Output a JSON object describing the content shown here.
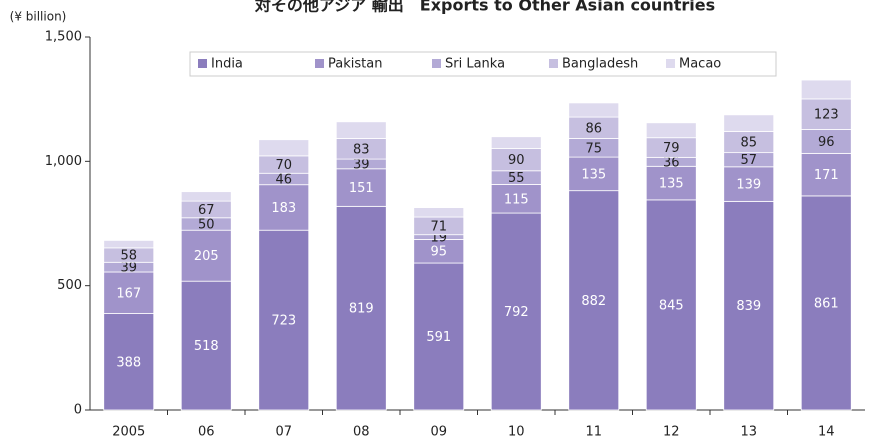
{
  "chart_data": {
    "type": "stacked_bar",
    "title": "対その他アジア 輸出　Exports to Other Asian countries",
    "y_axis_label": "(¥ billion)",
    "categories": [
      "2005",
      "06",
      "07",
      "08",
      "09",
      "10",
      "11",
      "12",
      "13",
      "14"
    ],
    "series": [
      {
        "name": "India",
        "color": "#8b7dbd",
        "label_color": "#ffffff",
        "show_labels": true,
        "values": [
          388,
          518,
          723,
          819,
          591,
          792,
          882,
          845,
          839,
          861
        ]
      },
      {
        "name": "Pakistan",
        "color": "#a093ca",
        "label_color": "#ffffff",
        "show_labels": true,
        "values": [
          167,
          205,
          183,
          151,
          95,
          115,
          135,
          135,
          139,
          171
        ]
      },
      {
        "name": "Sri Lanka",
        "color": "#b3aad6",
        "label_color": "#222222",
        "show_labels": true,
        "values": [
          39,
          50,
          46,
          39,
          19,
          55,
          75,
          36,
          57,
          96
        ]
      },
      {
        "name": "Bangladesh",
        "color": "#c6bfe0",
        "label_color": "#222222",
        "show_labels": true,
        "values": [
          58,
          67,
          70,
          83,
          71,
          90,
          86,
          79,
          85,
          123
        ]
      },
      {
        "name": "Macao",
        "color": "#dedaee",
        "label_color": "#222222",
        "show_labels": false,
        "values": [
          30,
          38,
          65,
          67,
          38,
          47,
          57,
          60,
          67,
          76
        ]
      }
    ],
    "ylim": [
      0,
      1500
    ],
    "yticks": [
      0,
      500,
      {
        "value": 1000,
        "label": "1,000"
      },
      {
        "value": 1500,
        "label": "1,500"
      }
    ],
    "legend": "top"
  }
}
